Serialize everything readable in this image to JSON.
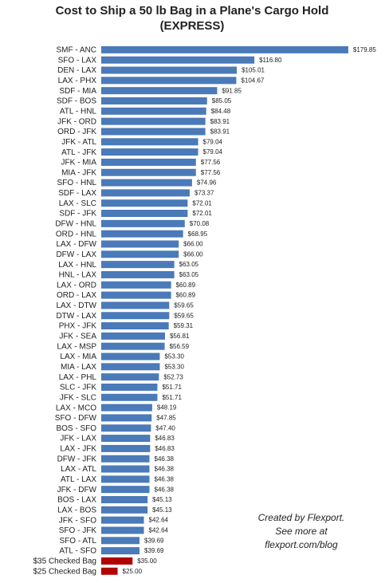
{
  "chart_data": {
    "type": "bar",
    "orientation": "horizontal",
    "title": [
      "Cost to Ship a 50 lb Bag in a Plane's Cargo Hold",
      "(EXPRESS)"
    ],
    "categories": [
      "SMF - ANC",
      "SFO - LAX",
      "DEN - LAX",
      "LAX - PHX",
      "SDF - MIA",
      "SDF - BOS",
      "ATL - HNL",
      "JFK - ORD",
      "ORD - JFK",
      "JFK - ATL",
      "ATL - JFK",
      "JFK - MIA",
      "MIA - JFK",
      "SFO - HNL",
      "SDF - LAX",
      "LAX - SLC",
      "SDF - JFK",
      "DFW - HNL",
      "ORD - HNL",
      "LAX - DFW",
      "DFW - LAX",
      "LAX - HNL",
      "HNL - LAX",
      "LAX - ORD",
      "ORD - LAX",
      "LAX - DTW",
      "DTW - LAX",
      "PHX - JFK",
      "JFK - SEA",
      "LAX - MSP",
      "LAX - MIA",
      "MIA - LAX",
      "LAX - PHL",
      "SLC - JFK",
      "JFK - SLC",
      "LAX - MCO",
      "SFO - DFW",
      "BOS - SFO",
      "JFK - LAX",
      "LAX - JFK",
      "DFW - JFK",
      "LAX - ATL",
      "ATL - LAX",
      "JFK - DFW",
      "BOS - LAX",
      "LAX - BOS",
      "JFK - SFO",
      "SFO - JFK",
      "SFO - ATL",
      "ATL - SFO",
      "$35 Checked Bag",
      "$25 Checked Bag"
    ],
    "values": [
      179.85,
      116.8,
      105.01,
      104.67,
      91.85,
      85.05,
      84.48,
      83.91,
      83.91,
      79.04,
      79.04,
      77.56,
      77.56,
      74.96,
      73.37,
      72.01,
      72.01,
      70.08,
      68.95,
      66,
      66,
      63.05,
      63.05,
      60.89,
      60.89,
      59.65,
      59.65,
      59.31,
      56.81,
      56.59,
      53.3,
      53.3,
      52.73,
      51.71,
      51.71,
      48.19,
      47.85,
      47.4,
      46.83,
      46.83,
      46.38,
      46.38,
      46.38,
      46.38,
      45.13,
      45.13,
      42.64,
      42.64,
      39.69,
      39.69,
      35,
      25
    ],
    "value_labels": [
      "$179.85",
      "$116.80",
      "$105.01",
      "$104.67",
      "$91.85",
      "$85.05",
      "$84.48",
      "$83.91",
      "$83.91",
      "$79.04",
      "$79.04",
      "$77.56",
      "$77.56",
      "$74.96",
      "$73.37",
      "$72.01",
      "$72.01",
      "$70.08",
      "$68.95",
      "$66.00",
      "$66.00",
      "$63.05",
      "$63.05",
      "$60.89",
      "$60.89",
      "$59.65",
      "$59.65",
      "$59.31",
      "$56.81",
      "$56.59",
      "$53.30",
      "$53.30",
      "$52.73",
      "$51.71",
      "$51.71",
      "$48.19",
      "$47.85",
      "$47.40",
      "$46.83",
      "$46.83",
      "$46.38",
      "$46.38",
      "$46.38",
      "$46.38",
      "$45.13",
      "$45.13",
      "$42.64",
      "$42.64",
      "$39.69",
      "$39.69",
      "$35.00",
      "$25.00"
    ],
    "colors": [
      "#4a7ab8",
      "#4a7ab8",
      "#4a7ab8",
      "#4a7ab8",
      "#4a7ab8",
      "#4a7ab8",
      "#4a7ab8",
      "#4a7ab8",
      "#4a7ab8",
      "#4a7ab8",
      "#4a7ab8",
      "#4a7ab8",
      "#4a7ab8",
      "#4a7ab8",
      "#4a7ab8",
      "#4a7ab8",
      "#4a7ab8",
      "#4a7ab8",
      "#4a7ab8",
      "#4a7ab8",
      "#4a7ab8",
      "#4a7ab8",
      "#4a7ab8",
      "#4a7ab8",
      "#4a7ab8",
      "#4a7ab8",
      "#4a7ab8",
      "#4a7ab8",
      "#4a7ab8",
      "#4a7ab8",
      "#4a7ab8",
      "#4a7ab8",
      "#4a7ab8",
      "#4a7ab8",
      "#4a7ab8",
      "#4a7ab8",
      "#4a7ab8",
      "#4a7ab8",
      "#4a7ab8",
      "#4a7ab8",
      "#4a7ab8",
      "#4a7ab8",
      "#4a7ab8",
      "#4a7ab8",
      "#4a7ab8",
      "#4a7ab8",
      "#4a7ab8",
      "#4a7ab8",
      "#4a7ab8",
      "#4a7ab8",
      "#b00000",
      "#b00000"
    ],
    "xlim": [
      14,
      181.5
    ],
    "annotation": [
      "Created by Flexport.",
      "See more at",
      "flexport.com/blog"
    ]
  }
}
